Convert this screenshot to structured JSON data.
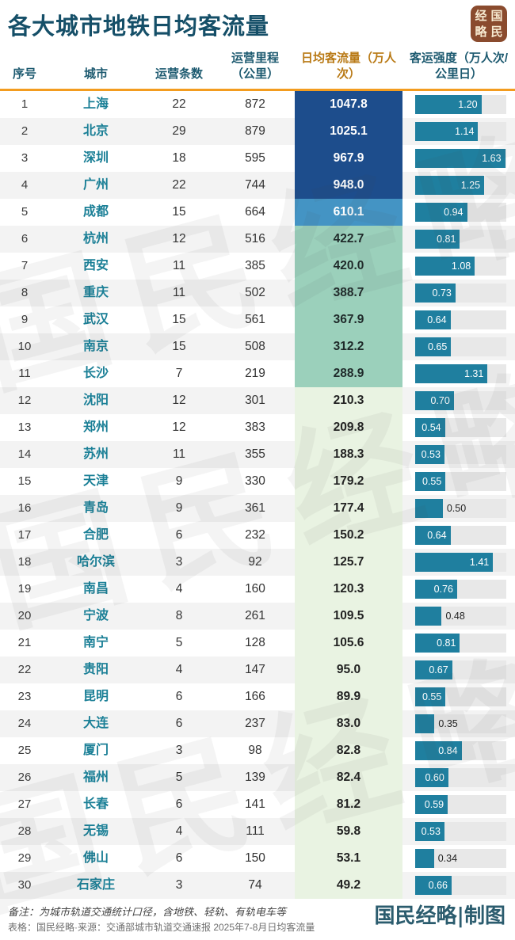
{
  "title": "各大城市地铁日均客流量",
  "logo": {
    "grid_chars": [
      "经",
      "国",
      "略",
      "民"
    ],
    "reading": "国民经略"
  },
  "watermark_text": "国民经略",
  "footnotes": {
    "line1": "备注：为城市轨道交通统计口径，含地铁、轻轨、有轨电车等",
    "line2": "表格：国民经略·来源：交通部城市轨道交通速报 2025年7-8月日均客流量"
  },
  "credit": "国民经略|制图",
  "colors": {
    "accent_orange": "#f39c1f",
    "title": "#154f68",
    "header": "#1d5a70",
    "flow_header": "#b97a16",
    "city": "#1a7f96",
    "bar": "#1f7f9f",
    "bar_track": "#e8e8e8",
    "stripe": "#f3f3f3",
    "navy": "#1d4d8c",
    "steel": "#4494c4",
    "seafoam": "#9bd0bb",
    "pale_green": "#e9f3e2",
    "logo_bg": "#8a4b2e",
    "logo_fg": "#f7ead1",
    "credit": "#2b5c6e"
  },
  "flow_tiers": [
    {
      "max_rank": 4,
      "bg": "navy",
      "fg": "#ffffff"
    },
    {
      "max_rank": 5,
      "bg": "steel",
      "fg": "#ffffff"
    },
    {
      "max_rank": 11,
      "bg": "seafoam",
      "fg": "#1f2a2a"
    },
    {
      "max_rank": 30,
      "bg": "pale_green",
      "fg": "#222222"
    }
  ],
  "bar_axis": {
    "min": 0,
    "max": 1.65,
    "inside_label_min": 0.53
  },
  "chart_data": {
    "type": "table",
    "title": "各大城市地铁日均客流量",
    "columns": [
      "序号",
      "城市",
      "运营条数",
      "运营里程（公里）",
      "日均客流量（万人次）",
      "客运强度（万人次/公里日）"
    ],
    "bar_column": "客运强度（万人次/公里日）",
    "bar_range": [
      0,
      1.65
    ],
    "rows": [
      {
        "rank": 1,
        "city": "上海",
        "lines": 22,
        "km": 872,
        "flow": "1047.8",
        "intensity": "1.20"
      },
      {
        "rank": 2,
        "city": "北京",
        "lines": 29,
        "km": 879,
        "flow": "1025.1",
        "intensity": "1.14"
      },
      {
        "rank": 3,
        "city": "深圳",
        "lines": 18,
        "km": 595,
        "flow": "967.9",
        "intensity": "1.63"
      },
      {
        "rank": 4,
        "city": "广州",
        "lines": 22,
        "km": 744,
        "flow": "948.0",
        "intensity": "1.25"
      },
      {
        "rank": 5,
        "city": "成都",
        "lines": 15,
        "km": 664,
        "flow": "610.1",
        "intensity": "0.94"
      },
      {
        "rank": 6,
        "city": "杭州",
        "lines": 12,
        "km": 516,
        "flow": "422.7",
        "intensity": "0.81"
      },
      {
        "rank": 7,
        "city": "西安",
        "lines": 11,
        "km": 385,
        "flow": "420.0",
        "intensity": "1.08"
      },
      {
        "rank": 8,
        "city": "重庆",
        "lines": 11,
        "km": 502,
        "flow": "388.7",
        "intensity": "0.73"
      },
      {
        "rank": 9,
        "city": "武汉",
        "lines": 15,
        "km": 561,
        "flow": "367.9",
        "intensity": "0.64"
      },
      {
        "rank": 10,
        "city": "南京",
        "lines": 15,
        "km": 508,
        "flow": "312.2",
        "intensity": "0.65"
      },
      {
        "rank": 11,
        "city": "长沙",
        "lines": 7,
        "km": 219,
        "flow": "288.9",
        "intensity": "1.31"
      },
      {
        "rank": 12,
        "city": "沈阳",
        "lines": 12,
        "km": 301,
        "flow": "210.3",
        "intensity": "0.70"
      },
      {
        "rank": 13,
        "city": "郑州",
        "lines": 12,
        "km": 383,
        "flow": "209.8",
        "intensity": "0.54"
      },
      {
        "rank": 14,
        "city": "苏州",
        "lines": 11,
        "km": 355,
        "flow": "188.3",
        "intensity": "0.53"
      },
      {
        "rank": 15,
        "city": "天津",
        "lines": 9,
        "km": 330,
        "flow": "179.2",
        "intensity": "0.55"
      },
      {
        "rank": 16,
        "city": "青岛",
        "lines": 9,
        "km": 361,
        "flow": "177.4",
        "intensity": "0.50"
      },
      {
        "rank": 17,
        "city": "合肥",
        "lines": 6,
        "km": 232,
        "flow": "150.2",
        "intensity": "0.64"
      },
      {
        "rank": 18,
        "city": "哈尔滨",
        "lines": 3,
        "km": 92,
        "flow": "125.7",
        "intensity": "1.41"
      },
      {
        "rank": 19,
        "city": "南昌",
        "lines": 4,
        "km": 160,
        "flow": "120.3",
        "intensity": "0.76"
      },
      {
        "rank": 20,
        "city": "宁波",
        "lines": 8,
        "km": 261,
        "flow": "109.5",
        "intensity": "0.48"
      },
      {
        "rank": 21,
        "city": "南宁",
        "lines": 5,
        "km": 128,
        "flow": "105.6",
        "intensity": "0.81"
      },
      {
        "rank": 22,
        "city": "贵阳",
        "lines": 4,
        "km": 147,
        "flow": "95.0",
        "intensity": "0.67"
      },
      {
        "rank": 23,
        "city": "昆明",
        "lines": 6,
        "km": 166,
        "flow": "89.9",
        "intensity": "0.55"
      },
      {
        "rank": 24,
        "city": "大连",
        "lines": 6,
        "km": 237,
        "flow": "83.0",
        "intensity": "0.35"
      },
      {
        "rank": 25,
        "city": "厦门",
        "lines": 3,
        "km": 98,
        "flow": "82.8",
        "intensity": "0.84"
      },
      {
        "rank": 26,
        "city": "福州",
        "lines": 5,
        "km": 139,
        "flow": "82.4",
        "intensity": "0.60"
      },
      {
        "rank": 27,
        "city": "长春",
        "lines": 6,
        "km": 141,
        "flow": "81.2",
        "intensity": "0.59"
      },
      {
        "rank": 28,
        "city": "无锡",
        "lines": 4,
        "km": 111,
        "flow": "59.8",
        "intensity": "0.53"
      },
      {
        "rank": 29,
        "city": "佛山",
        "lines": 6,
        "km": 150,
        "flow": "53.1",
        "intensity": "0.34"
      },
      {
        "rank": 30,
        "city": "石家庄",
        "lines": 3,
        "km": 74,
        "flow": "49.2",
        "intensity": "0.66"
      }
    ]
  }
}
